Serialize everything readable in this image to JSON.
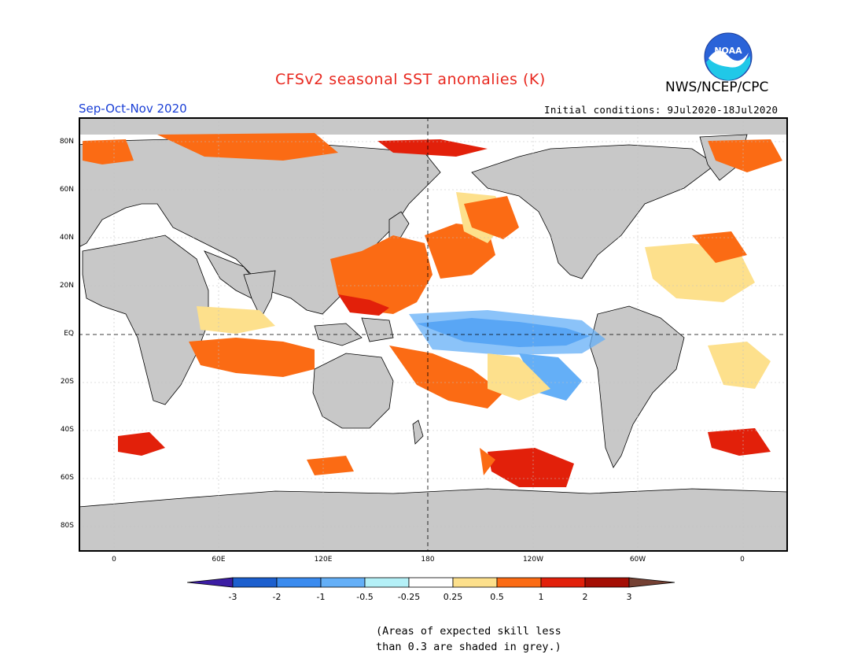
{
  "header": {
    "title": "CFSv2 seasonal SST anomalies (K)",
    "agency": "NWS/NCEP/CPC",
    "season": "Sep-Oct-Nov 2020",
    "initial_conditions": "Initial conditions: 9Jul2020-18Jul2020",
    "logo_text": "NOAA"
  },
  "map": {
    "latitude_labels": [
      "80N",
      "60N",
      "40N",
      "20N",
      "EQ",
      "20S",
      "40S",
      "60S",
      "80S"
    ],
    "longitude_labels": [
      "0",
      "60E",
      "120E",
      "180",
      "120W",
      "60W",
      "0"
    ],
    "skill_mask_color": "#c8c8c8",
    "land_color": "#c8c8c8"
  },
  "legend": {
    "levels": [
      "-3",
      "-2",
      "-1",
      "-0.5",
      "-0.25",
      "0.25",
      "0.5",
      "1",
      "2",
      "3"
    ],
    "colors": [
      "#3c1da4",
      "#1c5fce",
      "#3a8bef",
      "#64aff7",
      "#b4f0f7",
      "#ffffff",
      "#fde08c",
      "#fb6b14",
      "#e2200a",
      "#a40e04",
      "#744033"
    ]
  },
  "note": {
    "line1": "(Areas of expected skill less",
    "line2": "than 0.3 are shaded in grey.)"
  }
}
